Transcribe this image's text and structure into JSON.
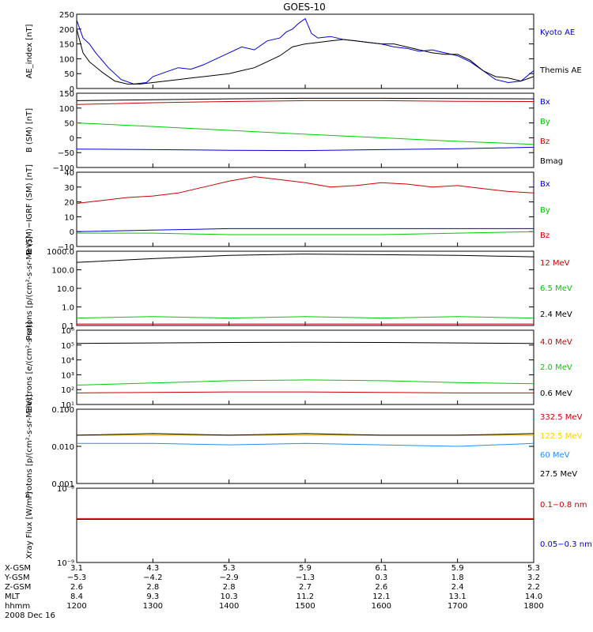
{
  "title": "GOES-10",
  "chart_data": [
    {
      "type": "line",
      "ylabel": "AE_index [nT]",
      "ylim": [
        0,
        250
      ],
      "yticks": [
        "0",
        "50",
        "100",
        "150",
        "200",
        "250"
      ],
      "series": [
        {
          "name": "Kyoto AE",
          "color": "#0000dd",
          "x": [
            1200,
            1205,
            1210,
            1215,
            1225,
            1235,
            1245,
            1255,
            1300,
            1310,
            1320,
            1330,
            1340,
            1350,
            1400,
            1410,
            1420,
            1430,
            1440,
            1445,
            1450,
            1455,
            1500,
            1505,
            1510,
            1520,
            1530,
            1540,
            1550,
            1600,
            1610,
            1620,
            1630,
            1640,
            1650,
            1700,
            1710,
            1720,
            1730,
            1740,
            1750,
            1800
          ],
          "y": [
            230,
            170,
            150,
            120,
            70,
            30,
            15,
            20,
            40,
            55,
            70,
            65,
            80,
            100,
            120,
            140,
            130,
            160,
            170,
            190,
            200,
            220,
            235,
            185,
            170,
            175,
            165,
            160,
            155,
            150,
            140,
            135,
            125,
            130,
            120,
            110,
            90,
            60,
            30,
            20,
            25,
            60
          ]
        },
        {
          "name": "Themis AE",
          "color": "#000000",
          "x": [
            1200,
            1205,
            1210,
            1220,
            1230,
            1240,
            1250,
            1300,
            1310,
            1320,
            1330,
            1340,
            1350,
            1400,
            1410,
            1420,
            1430,
            1440,
            1450,
            1500,
            1510,
            1520,
            1530,
            1540,
            1550,
            1600,
            1610,
            1620,
            1630,
            1640,
            1650,
            1700,
            1710,
            1720,
            1730,
            1740,
            1750,
            1800
          ],
          "y": [
            200,
            120,
            90,
            55,
            25,
            15,
            15,
            20,
            25,
            30,
            35,
            40,
            45,
            50,
            60,
            70,
            90,
            110,
            140,
            150,
            155,
            160,
            165,
            160,
            155,
            150,
            150,
            140,
            130,
            120,
            115,
            115,
            95,
            60,
            40,
            35,
            25,
            40
          ]
        }
      ]
    },
    {
      "type": "line",
      "ylabel": "B (SM) [nT]",
      "ylim": [
        -100,
        150
      ],
      "yticks": [
        "−100",
        "−50",
        "0",
        "50",
        "100",
        "150"
      ],
      "series": [
        {
          "name": "Bx",
          "color": "#0000dd",
          "x": [
            1200,
            1300,
            1400,
            1500,
            1600,
            1700,
            1800
          ],
          "y": [
            -38,
            -40,
            -42,
            -43,
            -40,
            -37,
            -32
          ]
        },
        {
          "name": "By",
          "color": "#00cc00",
          "x": [
            1200,
            1300,
            1400,
            1500,
            1600,
            1700,
            1800
          ],
          "y": [
            50,
            38,
            25,
            12,
            0,
            -12,
            -22
          ]
        },
        {
          "name": "Bz",
          "color": "#cc0000",
          "x": [
            1200,
            1300,
            1400,
            1500,
            1600,
            1700,
            1800
          ],
          "y": [
            112,
            118,
            122,
            125,
            125,
            123,
            122
          ]
        },
        {
          "name": "Bmag",
          "color": "#000000",
          "x": [
            1200,
            1300,
            1400,
            1500,
            1600,
            1700,
            1800
          ],
          "y": [
            125,
            128,
            131,
            133,
            133,
            132,
            131
          ]
        }
      ]
    },
    {
      "type": "line",
      "ylabel": "B (SM)−IGRF (SM) [nT]",
      "ylim": [
        -10,
        40
      ],
      "yticks": [
        "−10",
        "0",
        "10",
        "20",
        "30",
        "40"
      ],
      "series": [
        {
          "name": "Bx",
          "color": "#0000dd",
          "x": [
            1200,
            1300,
            1400,
            1500,
            1600,
            1700,
            1800
          ],
          "y": [
            0,
            1,
            2,
            2,
            2,
            2,
            2
          ]
        },
        {
          "name": "By",
          "color": "#00cc00",
          "x": [
            1200,
            1300,
            1400,
            1500,
            1600,
            1700,
            1800
          ],
          "y": [
            -1,
            -1,
            -2,
            -2,
            -2,
            -1,
            0
          ]
        },
        {
          "name": "Bz",
          "color": "#cc0000",
          "x": [
            1200,
            1220,
            1240,
            1300,
            1320,
            1340,
            1400,
            1420,
            1440,
            1500,
            1520,
            1540,
            1600,
            1620,
            1640,
            1700,
            1720,
            1740,
            1800
          ],
          "y": [
            19,
            21,
            23,
            24,
            26,
            30,
            34,
            37,
            35,
            33,
            30,
            31,
            33,
            32,
            30,
            31,
            29,
            27,
            26
          ]
        }
      ]
    },
    {
      "type": "line",
      "ylabel": "Protons [p/(cm²-s-sr-MeV)]",
      "yscale": "log",
      "ylim": [
        0.1,
        1000
      ],
      "yticks": [
        "0.1",
        "1.0",
        "10.0",
        "100.0",
        "1000.0"
      ],
      "series": [
        {
          "name": "12 MeV",
          "color": "#cc0000",
          "x": [
            1200,
            1300,
            1400,
            1500,
            1600,
            1700,
            1800
          ],
          "y": [
            0.12,
            0.12,
            0.12,
            0.12,
            0.12,
            0.12,
            0.12
          ]
        },
        {
          "name": "6.5 MeV",
          "color": "#00cc00",
          "x": [
            1200,
            1300,
            1400,
            1500,
            1600,
            1700,
            1800
          ],
          "y": [
            0.25,
            0.3,
            0.25,
            0.3,
            0.25,
            0.3,
            0.25
          ]
        },
        {
          "name": "2.4 MeV",
          "color": "#000000",
          "x": [
            1200,
            1300,
            1400,
            1500,
            1600,
            1700,
            1800
          ],
          "y": [
            250,
            400,
            600,
            700,
            650,
            600,
            500
          ]
        }
      ]
    },
    {
      "type": "line",
      "ylabel": "Electrons [e/(cm²-s-sr)]",
      "yscale": "log",
      "ylim": [
        10,
        1000000
      ],
      "yticks": [
        "10¹",
        "10²",
        "10³",
        "10⁴",
        "10⁵",
        "10⁶"
      ],
      "series": [
        {
          "name": "4.0 MeV",
          "color": "#cc0000",
          "x": [
            1200,
            1300,
            1400,
            1500,
            1600,
            1700,
            1800
          ],
          "y": [
            60,
            65,
            70,
            70,
            65,
            60,
            60
          ]
        },
        {
          "name": "2.0 MeV",
          "color": "#00cc00",
          "x": [
            1200,
            1300,
            1400,
            1500,
            1600,
            1700,
            1800
          ],
          "y": [
            200,
            280,
            400,
            450,
            400,
            300,
            250
          ]
        },
        {
          "name": "0.6 MeV",
          "color": "#000000",
          "x": [
            1200,
            1300,
            1400,
            1500,
            1600,
            1700,
            1800
          ],
          "y": [
            130000,
            140000,
            150000,
            155000,
            150000,
            140000,
            130000
          ]
        }
      ]
    },
    {
      "type": "line",
      "ylabel": "Protons [p/(cm²-s-sr-MeV)]",
      "yscale": "log",
      "ylim": [
        0.001,
        0.1
      ],
      "yticks": [
        "0.001",
        "0.010",
        "0.100"
      ],
      "series": [
        {
          "name": "332.5 MeV",
          "color": "#cc0000",
          "x": [
            1200,
            1800
          ],
          "y": [
            0.02,
            0.02
          ]
        },
        {
          "name": "122.5 MeV",
          "color": "#ffd000",
          "x": [
            1200,
            1800
          ],
          "y": [
            0.02,
            0.02
          ]
        },
        {
          "name": "60 MeV",
          "color": "#1e90ff",
          "x": [
            1200,
            1300,
            1400,
            1500,
            1600,
            1700,
            1800
          ],
          "y": [
            0.012,
            0.012,
            0.011,
            0.012,
            0.011,
            0.01,
            0.012
          ]
        },
        {
          "name": "27.5 MeV",
          "color": "#000000",
          "x": [
            1200,
            1300,
            1400,
            1500,
            1600,
            1700,
            1800
          ],
          "y": [
            0.02,
            0.022,
            0.02,
            0.022,
            0.02,
            0.02,
            0.022
          ]
        }
      ]
    },
    {
      "type": "line",
      "ylabel": "Xray Flux [W/m²]",
      "yscale": "log",
      "ylim": [
        1e-09,
        1e-08
      ],
      "yticks": [
        "10⁻⁹",
        "10⁻⁸"
      ],
      "series": [
        {
          "name": "0.1−0.8 nm",
          "color": "#cc0000",
          "x": [
            1200,
            1800
          ],
          "y": [
            3.9e-09,
            3.9e-09
          ]
        },
        {
          "name": "0.05−0.3 nm",
          "color": "#0000dd",
          "x": [
            1200,
            1800
          ],
          "y": [
            3.8e-09,
            3.8e-09
          ]
        }
      ]
    }
  ],
  "xaxis": {
    "labels": [
      "X-GSM",
      "Y-GSM",
      "Z-GSM",
      "MLT",
      "hhmm",
      "2008 Dec 16"
    ],
    "ticks": [
      {
        "x": 1200,
        "vals": [
          "3.1",
          "−5.3",
          "2.6",
          "8.4",
          "1200"
        ]
      },
      {
        "x": 1300,
        "vals": [
          "4.3",
          "−4.2",
          "2.8",
          "9.3",
          "1300"
        ]
      },
      {
        "x": 1400,
        "vals": [
          "5.3",
          "−2.9",
          "2.8",
          "10.3",
          "1400"
        ]
      },
      {
        "x": 1500,
        "vals": [
          "5.9",
          "−1.3",
          "2.7",
          "11.2",
          "1500"
        ]
      },
      {
        "x": 1600,
        "vals": [
          "6.1",
          "0.3",
          "2.6",
          "12.1",
          "1600"
        ]
      },
      {
        "x": 1700,
        "vals": [
          "5.9",
          "1.8",
          "2.4",
          "13.1",
          "1700"
        ]
      },
      {
        "x": 1800,
        "vals": [
          "5.3",
          "3.2",
          "2.2",
          "14.0",
          "1800"
        ]
      }
    ]
  }
}
